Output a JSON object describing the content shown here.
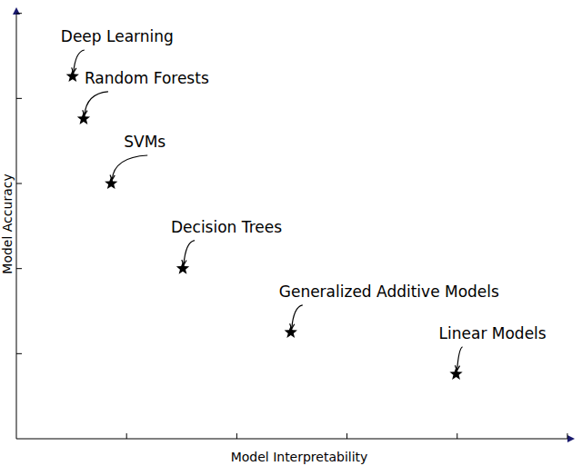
{
  "chart_data": {
    "type": "scatter",
    "x_label": "Model Interpretability",
    "y_label": "Model Accuracy",
    "labels": [
      "Deep Learning",
      "Random Forests",
      "SVMs",
      "Decision Trees",
      "Generalized Additive Models",
      "Linear Models"
    ],
    "x": [
      0.51,
      0.61,
      0.86,
      1.51,
      2.49,
      3.99
    ],
    "values": [
      4.26,
      3.76,
      3.0,
      2.0,
      1.25,
      0.76
    ],
    "xlim": [
      0,
      5.05
    ],
    "ylim": [
      0,
      5.05
    ],
    "xticks": [
      1,
      2,
      3,
      4,
      5
    ],
    "yticks": [
      1,
      2,
      3,
      4,
      5
    ],
    "tick_labels": false,
    "grid": false,
    "marker": "star",
    "color": "#000000"
  }
}
